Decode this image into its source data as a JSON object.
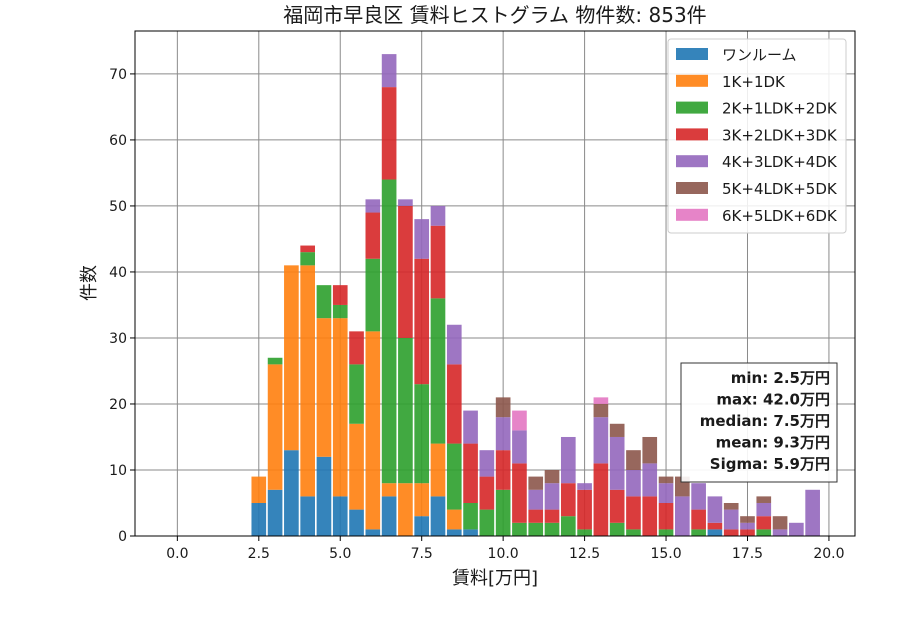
{
  "chart_data": {
    "type": "bar",
    "stacked": true,
    "title": "福岡市早良区 賃料ヒストグラム 物件数: 853件",
    "xlabel": "賃料[万円]",
    "ylabel": "件数",
    "xlim": [
      -1.3,
      20.8
    ],
    "ylim": [
      0,
      76.5
    ],
    "xticks": [
      0,
      2.5,
      5,
      7.5,
      10,
      12.5,
      15,
      17.5,
      20
    ],
    "xtick_labels": [
      "0.0",
      "2.5",
      "5.0",
      "7.5",
      "10.0",
      "12.5",
      "15.0",
      "17.5",
      "20.0"
    ],
    "yticks": [
      0,
      10,
      20,
      30,
      40,
      50,
      60,
      70
    ],
    "ytick_labels": [
      "0",
      "10",
      "20",
      "30",
      "40",
      "50",
      "60",
      "70"
    ],
    "grid": true,
    "legend_position": "top-right",
    "bin_width": 0.5,
    "x": [
      2.5,
      3.0,
      3.5,
      4.0,
      4.5,
      5.0,
      5.5,
      6.0,
      6.5,
      7.0,
      7.5,
      8.0,
      8.5,
      9.0,
      9.5,
      10.0,
      10.5,
      11.0,
      11.5,
      12.0,
      12.5,
      13.0,
      13.5,
      14.0,
      14.5,
      15.0,
      15.5,
      16.0,
      16.5,
      17.0,
      17.5,
      18.0,
      18.5,
      19.0,
      19.5
    ],
    "series": [
      {
        "name": "ワンルーム",
        "color": "#1f77b4",
        "values": [
          5,
          7,
          13,
          6,
          12,
          6,
          4,
          1,
          6,
          0,
          3,
          6,
          1,
          1,
          0,
          0,
          0,
          0,
          0,
          0,
          0,
          0,
          0,
          0,
          0,
          0,
          0,
          0,
          1,
          0,
          0,
          0,
          0,
          0,
          0
        ]
      },
      {
        "name": "1K+1DK",
        "color": "#ff7f0e",
        "values": [
          4,
          19,
          28,
          35,
          21,
          27,
          13,
          30,
          2,
          8,
          5,
          8,
          3,
          0,
          0,
          0,
          0,
          0,
          0,
          0,
          0,
          0,
          0,
          0,
          0,
          0,
          0,
          0,
          0,
          0,
          0,
          0,
          0,
          0,
          0
        ]
      },
      {
        "name": "2K+1LDK+2DK",
        "color": "#2ca02c",
        "values": [
          0,
          1,
          0,
          2,
          5,
          2,
          9,
          11,
          46,
          22,
          15,
          22,
          10,
          4,
          4,
          7,
          2,
          2,
          2,
          3,
          1,
          0,
          2,
          1,
          0,
          1,
          0,
          1,
          0,
          0,
          0,
          1,
          0,
          0,
          0
        ]
      },
      {
        "name": "3K+2LDK+3DK",
        "color": "#d62728",
        "values": [
          0,
          0,
          0,
          1,
          0,
          3,
          5,
          7,
          14,
          20,
          19,
          11,
          12,
          9,
          5,
          6,
          9,
          2,
          2,
          5,
          6,
          11,
          5,
          5,
          6,
          4,
          0,
          3,
          1,
          1,
          1,
          2,
          0,
          0,
          0
        ]
      },
      {
        "name": "4K+3LDK+4DK",
        "color": "#9467bd",
        "values": [
          0,
          0,
          0,
          0,
          0,
          0,
          0,
          2,
          5,
          1,
          6,
          3,
          6,
          5,
          4,
          5,
          5,
          3,
          4,
          7,
          1,
          7,
          8,
          4,
          5,
          3,
          6,
          4,
          4,
          3,
          1,
          2,
          1,
          2,
          7
        ]
      },
      {
        "name": "5K+4LDK+5DK",
        "color": "#8c564b",
        "values": [
          0,
          0,
          0,
          0,
          0,
          0,
          0,
          0,
          0,
          0,
          0,
          0,
          0,
          0,
          0,
          3,
          0,
          2,
          2,
          0,
          0,
          2,
          2,
          3,
          4,
          1,
          3,
          0,
          0,
          1,
          1,
          1,
          2,
          0,
          0
        ]
      },
      {
        "name": "6K+5LDK+6DK",
        "color": "#e377c2",
        "values": [
          0,
          0,
          0,
          0,
          0,
          0,
          0,
          0,
          0,
          0,
          0,
          0,
          0,
          0,
          0,
          0,
          3,
          0,
          0,
          0,
          0,
          1,
          0,
          0,
          0,
          0,
          0,
          0,
          0,
          0,
          0,
          0,
          0,
          0,
          0
        ]
      }
    ],
    "annotation": [
      "min: 2.5万円",
      "max: 42.0万円",
      "median: 7.5万円",
      "mean: 9.3万円",
      "Sigma: 5.9万円"
    ]
  }
}
